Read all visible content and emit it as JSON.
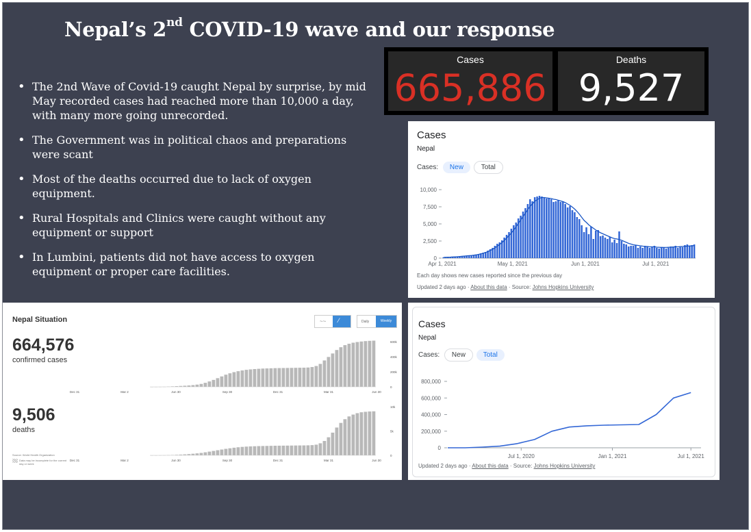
{
  "title": {
    "main_a": "Nepal’s 2",
    "main_sup": "nd",
    "main_b": " COVID-19 wave and our response"
  },
  "bullets": [
    "The 2nd Wave of Covid-19 caught Nepal by surprise, by mid May recorded cases had reached more than 10,000 a day, with many more going unrecorded.",
    " The Government was in political chaos and preparations were scant",
    "Most of the deaths occurred due to lack of oxygen equipment.",
    "Rural Hospitals and Clinics were caught without any equipment or support",
    "In Lumbini, patients did not have access to oxygen equipment or proper care facilities."
  ],
  "stats": {
    "cases_label": "Cases",
    "cases_value": "665,886",
    "cases_color": "#d93025",
    "deaths_label": "Deaths",
    "deaths_value": "9,527",
    "deaths_color": "#ffffff"
  },
  "new_cases_card": {
    "title": "Cases",
    "region": "Nepal",
    "cases_label": "Cases:",
    "btn_new": "New",
    "btn_total": "Total",
    "selected": "New",
    "caption": "Each day shows new cases reported since the previous day",
    "updated": "Updated 2 days ago · ",
    "about": "About this data",
    "source_sep": " · Source: ",
    "source": "Johns Hopkins University"
  },
  "total_cases_card": {
    "title": "Cases",
    "region": "Nepal",
    "cases_label": "Cases:",
    "btn_new": "New",
    "btn_total": "Total",
    "selected": "Total",
    "updated": "Updated 2 days ago · ",
    "about": "About this data",
    "source_sep": " · Source: ",
    "source": "Johns Hopkins University"
  },
  "who_card": {
    "title": "Nepal Situation",
    "confirmed_value": "664,576",
    "confirmed_label": "confirmed cases",
    "deaths_value": "9,506",
    "deaths_label": "deaths",
    "toggle_daily": "Daily",
    "toggle_weekly": "Weekly",
    "source": "Source: World Health Organization",
    "note": "Data may be incomplete for the current day or week"
  },
  "chart_data": [
    {
      "id": "new_cases",
      "type": "bar",
      "title": "Cases",
      "x_ticks": [
        "Apr 1, 2021",
        "May 1, 2021",
        "Jun 1, 2021",
        "Jul 1, 2021"
      ],
      "y_ticks": [
        "10,000",
        "7,500",
        "5,000",
        "2,500",
        "0"
      ],
      "ylim": [
        0,
        10000
      ],
      "values": [
        100,
        120,
        150,
        130,
        180,
        200,
        220,
        250,
        300,
        320,
        350,
        380,
        400,
        450,
        500,
        600,
        700,
        800,
        900,
        1100,
        1300,
        1500,
        1800,
        2100,
        2300,
        2600,
        3000,
        3400,
        3800,
        4300,
        4800,
        5200,
        5800,
        6200,
        6800,
        7300,
        7900,
        8600,
        8300,
        8900,
        9000,
        9100,
        9000,
        8800,
        8700,
        8700,
        8600,
        8200,
        8300,
        8400,
        8200,
        8300,
        7900,
        7400,
        7600,
        7000,
        6700,
        6000,
        5700,
        4800,
        3800,
        4500,
        3500,
        4600,
        2800,
        4000,
        4100,
        3200,
        3300,
        3000,
        2800,
        3100,
        2300,
        2700,
        2200,
        3900,
        2500,
        2100,
        2000,
        1700,
        1800,
        1800,
        1900,
        1500,
        1700,
        1500,
        1800,
        1700,
        1500,
        1700,
        1800,
        1500,
        1400,
        1600,
        1600,
        1400,
        1500,
        1700,
        1700,
        1800,
        1500,
        1600,
        1600,
        1900,
        2000,
        1800,
        1900,
        2000
      ],
      "series": [
        {
          "name": "7-day average",
          "values": [
            100,
            120,
            140,
            150,
            170,
            190,
            210,
            240,
            270,
            300,
            330,
            360,
            390,
            430,
            480,
            550,
            630,
            720,
            820,
            960,
            1120,
            1300,
            1500,
            1750,
            2000,
            2280,
            2600,
            2950,
            3300,
            3700,
            4100,
            4600,
            5100,
            5600,
            6100,
            6600,
            7100,
            7600,
            7950,
            8300,
            8550,
            8750,
            8850,
            8850,
            8800,
            8750,
            8700,
            8600,
            8550,
            8450,
            8350,
            8250,
            8100,
            7900,
            7700,
            7450,
            7150,
            6800,
            6400,
            5950,
            5500,
            5200,
            4850,
            4600,
            4350,
            4100,
            3900,
            3700,
            3550,
            3400,
            3250,
            3100,
            2950,
            2850,
            2800,
            2700,
            2600,
            2450,
            2300,
            2150,
            2050,
            1950,
            1900,
            1850,
            1800,
            1750,
            1700,
            1700,
            1650,
            1650,
            1650,
            1600,
            1580,
            1570,
            1560,
            1560,
            1580,
            1600,
            1620,
            1650,
            1650,
            1680,
            1700,
            1720,
            1750,
            1780,
            1800,
            1830
          ]
        }
      ]
    },
    {
      "id": "total_cases",
      "type": "line",
      "title": "Cases",
      "x_ticks": [
        "Jul 1, 2020",
        "Jan 1, 2021",
        "Jul 1, 2021"
      ],
      "y_ticks": [
        "800,000",
        "600,000",
        "400,000",
        "200,000",
        "0"
      ],
      "ylim": [
        0,
        800000
      ],
      "x": [
        "Jan 2020",
        "Apr 2020",
        "Jun 2020",
        "Aug 2020",
        "Sep 2020",
        "Oct 2020",
        "Nov 2020",
        "Dec 2020",
        "Jan 2021",
        "Feb 2021",
        "Mar 2021",
        "Apr 2021",
        "May 2021",
        "Jun 2021",
        "Jul 2021"
      ],
      "values": [
        0,
        0,
        8000,
        20000,
        50000,
        100000,
        200000,
        250000,
        265000,
        272000,
        276000,
        280000,
        400000,
        600000,
        665000
      ]
    },
    {
      "id": "who_confirmed",
      "type": "bar",
      "title": "Nepal Situation",
      "x_ticks": [
        "Dec 31",
        "Mar 2",
        "Jun 30",
        "Sep 30",
        "Dec 31",
        "Mar 31",
        "Jun 30"
      ],
      "y_ticks": [
        "600k",
        "400k",
        "200k",
        "0"
      ],
      "ylim": [
        0,
        650000
      ],
      "values": [
        200,
        500,
        1000,
        2000,
        4000,
        7000,
        10000,
        13000,
        16000,
        20000,
        25000,
        32000,
        42000,
        58000,
        78000,
        100000,
        125000,
        150000,
        175000,
        195000,
        212000,
        225000,
        236000,
        245000,
        251000,
        256000,
        260000,
        263000,
        265000,
        267000,
        269000,
        270000,
        271000,
        272000,
        273000,
        274000,
        275000,
        276000,
        278000,
        285000,
        300000,
        330000,
        380000,
        430000,
        480000,
        530000,
        570000,
        600000,
        620000,
        635000,
        645000,
        652000,
        658000,
        662000,
        664576
      ]
    },
    {
      "id": "who_deaths",
      "type": "bar",
      "title": "Nepal Situation",
      "x_ticks": [
        "Dec 31",
        "Mar 2",
        "Jun 30",
        "Sep 30",
        "Dec 31",
        "Mar 31",
        "Jun 30"
      ],
      "y_ticks": [
        "10k",
        "5k",
        "0"
      ],
      "ylim": [
        0,
        10500
      ],
      "values": [
        5,
        10,
        20,
        30,
        50,
        80,
        120,
        160,
        210,
        270,
        340,
        420,
        520,
        650,
        800,
        950,
        1100,
        1250,
        1400,
        1520,
        1640,
        1740,
        1820,
        1880,
        1930,
        1960,
        1990,
        2010,
        2030,
        2050,
        2070,
        2080,
        2090,
        2100,
        2110,
        2120,
        2130,
        2140,
        2160,
        2200,
        2300,
        2600,
        3100,
        3900,
        4900,
        6000,
        7000,
        7800,
        8400,
        8800,
        9100,
        9300,
        9400,
        9470,
        9506
      ]
    }
  ]
}
